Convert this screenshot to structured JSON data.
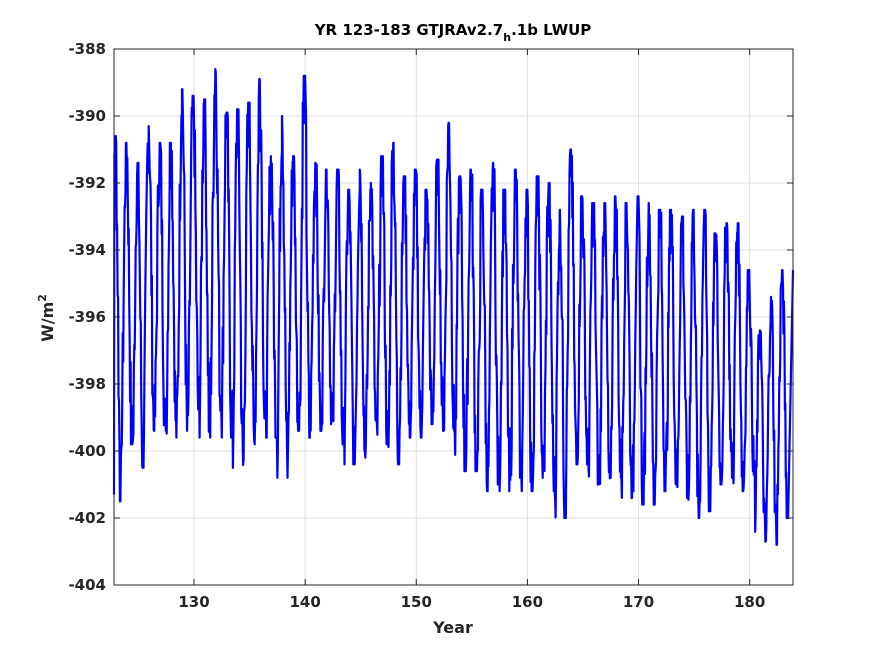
{
  "chart_data": {
    "type": "line",
    "title_main": "YR 123-183 GTJRAv2.7",
    "title_sub": "h",
    "title_tail": ".1b LWUP",
    "xlabel": "Year",
    "ylabel_base": "W/m",
    "ylabel_sup": "2",
    "xlim": [
      122.8,
      183.9
    ],
    "ylim": [
      -404,
      -388
    ],
    "xticks": [
      130,
      140,
      150,
      160,
      170,
      180
    ],
    "xtick_labels": [
      "130",
      "140",
      "150",
      "160",
      "170",
      "180"
    ],
    "yticks": [
      -388,
      -390,
      -392,
      -394,
      -396,
      -398,
      -400,
      -402,
      -404
    ],
    "ytick_labels": [
      "-388",
      "-390",
      "-392",
      "-394",
      "-396",
      "-398",
      "-400",
      "-402",
      "-404"
    ],
    "grid": true,
    "line_color": "#0000ff",
    "series": [
      {
        "years": [
          123,
          124,
          125,
          126,
          127,
          128,
          129,
          130,
          131,
          132,
          133,
          134,
          135,
          136,
          137,
          138,
          139,
          140,
          141,
          142,
          143,
          144,
          145,
          146,
          147,
          148,
          149,
          150,
          151,
          152,
          153,
          154,
          155,
          156,
          157,
          158,
          159,
          160,
          161,
          162,
          163,
          164,
          165,
          166,
          167,
          168,
          169,
          170,
          171,
          172,
          173,
          174,
          175,
          176,
          177,
          178,
          179,
          180,
          181,
          182,
          183
        ],
        "peaks": [
          -390.6,
          -390.8,
          -391.4,
          -390.3,
          -390.8,
          -390.8,
          -389.2,
          -389.4,
          -389.5,
          -388.6,
          -389.9,
          -389.8,
          -389.6,
          -388.9,
          -391.2,
          -390.0,
          -391.2,
          -388.8,
          -391.4,
          -391.6,
          -391.6,
          -392.2,
          -391.6,
          -392.0,
          -391.2,
          -390.8,
          -391.8,
          -391.6,
          -392.2,
          -391.3,
          -390.2,
          -391.8,
          -391.6,
          -392.2,
          -391.4,
          -392.2,
          -391.6,
          -392.2,
          -391.8,
          -392.0,
          -392.8,
          -391.0,
          -392.4,
          -392.6,
          -392.6,
          -392.4,
          -392.6,
          -392.4,
          -392.6,
          -392.8,
          -392.8,
          -393.0,
          -392.8,
          -392.8,
          -393.5,
          -393.2,
          -393.2,
          -394.6,
          -396.4,
          -395.4,
          -394.6
        ],
        "troughs": [
          -401.5,
          -399.8,
          -400.5,
          -399.4,
          -399.4,
          -399.6,
          -399.6,
          -398.8,
          -399.6,
          -398.8,
          -399.6,
          -400.5,
          -399.8,
          -399.6,
          -399.6,
          -400.8,
          -399.4,
          -399.6,
          -399.4,
          -399.2,
          -399.8,
          -400.4,
          -400.2,
          -399.8,
          -399.8,
          -400.4,
          -399.6,
          -399.6,
          -399.2,
          -399.4,
          -399.4,
          -400.6,
          -400.6,
          -401.2,
          -401.0,
          -401.2,
          -400.8,
          -401.2,
          -400.8,
          -401.2,
          -402.0,
          -400.4,
          -400.4,
          -401.0,
          -401.4,
          -400.8,
          -401.4,
          -401.6,
          -401.6,
          -401.2,
          -401.0,
          -401.4,
          -402.0,
          -401.8,
          -401.0,
          -400.8,
          -401.2,
          -400.8,
          -402.8,
          -402.8,
          -402.0
        ]
      }
    ]
  }
}
